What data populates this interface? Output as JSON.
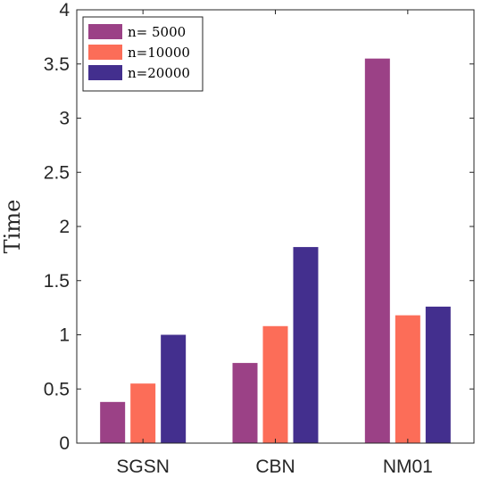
{
  "chart_data": {
    "type": "bar",
    "categories": [
      "SGSN",
      "CBN",
      "NM01"
    ],
    "series": [
      {
        "name": "n= 5000",
        "values": [
          0.38,
          0.74,
          3.55
        ],
        "color": "#9B4186"
      },
      {
        "name": "n=10000",
        "values": [
          0.55,
          1.08,
          1.18
        ],
        "color": "#FC6D58"
      },
      {
        "name": "n=20000",
        "values": [
          1.0,
          1.81,
          1.26
        ],
        "color": "#432F8E"
      }
    ],
    "title": "",
    "xlabel": "",
    "ylabel": "Time",
    "ylim": [
      0,
      4
    ],
    "yticks": [
      "0",
      "0.5",
      "1",
      "1.5",
      "2",
      "2.5",
      "3",
      "3.5",
      "4"
    ],
    "grid": false,
    "legend_position": "top-left"
  }
}
